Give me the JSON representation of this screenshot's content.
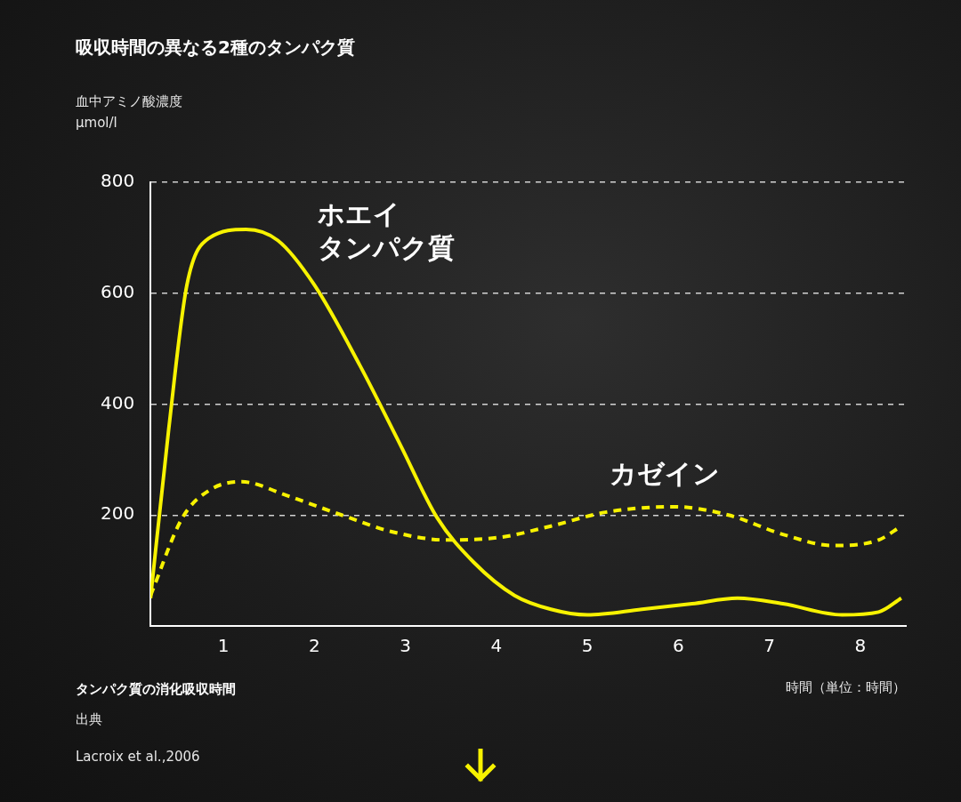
{
  "chart_data": {
    "type": "line",
    "title": "吸収時間の異なる2種のタンパク質",
    "y_label": [
      "血中アミノ酸濃度",
      "μmol/l"
    ],
    "x_label": "時間（単位：時間）",
    "caption": "タンパク質の消化吸収時間",
    "source_label": "出典",
    "source": "Lacroix et al.,2006",
    "series": [
      {
        "name": "ホエイ\nタンパク質",
        "color": "#f7f200",
        "line_style": "solid",
        "x": [
          0.2,
          0.4,
          0.6,
          0.85,
          1.25,
          1.6,
          2.0,
          2.5,
          2.95,
          3.35,
          3.75,
          4.2,
          4.6,
          5.0,
          5.6,
          6.15,
          6.65,
          7.15,
          7.8,
          8.2,
          8.45
        ],
        "values": [
          50,
          355,
          615,
          700,
          715,
          695,
          615,
          470,
          325,
          195,
          115,
          55,
          30,
          20,
          30,
          40,
          50,
          40,
          20,
          25,
          50
        ]
      },
      {
        "name": "カゼイン",
        "color": "#f7f200",
        "line_style": "dashed",
        "x": [
          0.2,
          0.55,
          0.85,
          1.2,
          1.7,
          2.3,
          2.85,
          3.45,
          4.05,
          4.6,
          5.2,
          5.95,
          6.55,
          7.15,
          7.7,
          8.2,
          8.45
        ],
        "values": [
          55,
          195,
          245,
          260,
          235,
          200,
          170,
          155,
          160,
          180,
          205,
          215,
          200,
          165,
          145,
          155,
          180
        ]
      }
    ],
    "xlim": [
      0.2,
      8.5
    ],
    "xticks": [
      1,
      2,
      3,
      4,
      5,
      6,
      7,
      8
    ],
    "ylim": [
      0,
      800
    ],
    "yticks": [
      200,
      400,
      600,
      800
    ],
    "grid": true,
    "legend": null
  }
}
